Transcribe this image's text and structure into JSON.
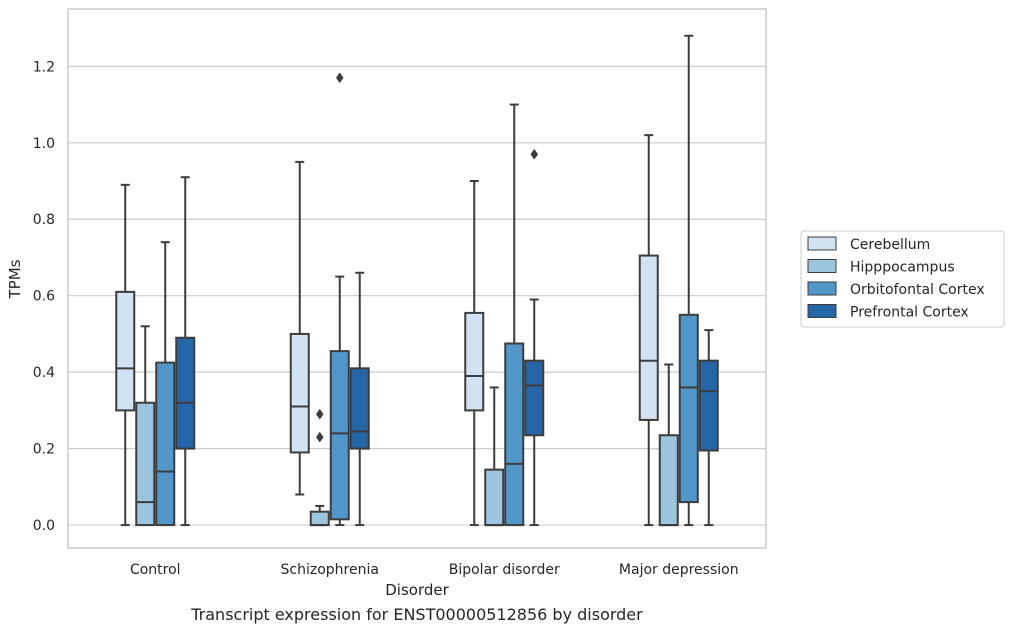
{
  "caption": "Transcript expression for ENST00000512856 by disorder",
  "chart_data": {
    "type": "box",
    "title": "",
    "xlabel": "Disorder",
    "ylabel": "TPMs",
    "ylim": [
      -0.06,
      1.35
    ],
    "yticks": [
      0.0,
      0.2,
      0.4,
      0.6,
      0.8,
      1.0,
      1.2
    ],
    "ytick_labels": [
      "0.0",
      "0.2",
      "0.4",
      "0.6",
      "0.8",
      "1.0",
      "1.2"
    ],
    "grid": "horizontal",
    "legend_position": "right",
    "categories": [
      "Control",
      "Schizophrenia",
      "Bipolar disorder",
      "Major depression"
    ],
    "series": [
      {
        "name": "Cerebellum",
        "color": "#d1e2f2",
        "boxes": [
          {
            "whislo": 0.0,
            "q1": 0.3,
            "med": 0.41,
            "q3": 0.61,
            "whishi": 0.89,
            "fliers": []
          },
          {
            "whislo": 0.08,
            "q1": 0.19,
            "med": 0.31,
            "q3": 0.5,
            "whishi": 0.95,
            "fliers": []
          },
          {
            "whislo": 0.0,
            "q1": 0.3,
            "med": 0.39,
            "q3": 0.555,
            "whishi": 0.9,
            "fliers": []
          },
          {
            "whislo": 0.0,
            "q1": 0.275,
            "med": 0.43,
            "q3": 0.705,
            "whishi": 1.02,
            "fliers": []
          }
        ]
      },
      {
        "name": "Hipppocampus",
        "color": "#9cc5de",
        "boxes": [
          {
            "whislo": 0.0,
            "q1": 0.0,
            "med": 0.06,
            "q3": 0.32,
            "whishi": 0.52,
            "fliers": []
          },
          {
            "whislo": 0.0,
            "q1": 0.0,
            "med": 0.0,
            "q3": 0.035,
            "whishi": 0.05,
            "fliers": [
              0.23,
              0.29
            ]
          },
          {
            "whislo": 0.0,
            "q1": 0.0,
            "med": 0.0,
            "q3": 0.145,
            "whishi": 0.36,
            "fliers": []
          },
          {
            "whislo": 0.0,
            "q1": 0.0,
            "med": 0.0,
            "q3": 0.235,
            "whishi": 0.42,
            "fliers": []
          }
        ]
      },
      {
        "name": "Orbitofontal Cortex",
        "color": "#5197c9",
        "boxes": [
          {
            "whislo": 0.0,
            "q1": 0.0,
            "med": 0.14,
            "q3": 0.425,
            "whishi": 0.74,
            "fliers": []
          },
          {
            "whislo": 0.0,
            "q1": 0.015,
            "med": 0.24,
            "q3": 0.455,
            "whishi": 0.65,
            "fliers": [
              1.17
            ]
          },
          {
            "whislo": 0.0,
            "q1": 0.0,
            "med": 0.16,
            "q3": 0.475,
            "whishi": 1.1,
            "fliers": []
          },
          {
            "whislo": 0.0,
            "q1": 0.06,
            "med": 0.36,
            "q3": 0.55,
            "whishi": 1.28,
            "fliers": []
          }
        ]
      },
      {
        "name": "Prefrontal Cortex",
        "color": "#2466a8",
        "boxes": [
          {
            "whislo": 0.0,
            "q1": 0.2,
            "med": 0.32,
            "q3": 0.49,
            "whishi": 0.91,
            "fliers": []
          },
          {
            "whislo": 0.0,
            "q1": 0.2,
            "med": 0.245,
            "q3": 0.41,
            "whishi": 0.66,
            "fliers": []
          },
          {
            "whislo": 0.0,
            "q1": 0.235,
            "med": 0.365,
            "q3": 0.43,
            "whishi": 0.59,
            "fliers": [
              0.97
            ]
          },
          {
            "whislo": 0.0,
            "q1": 0.195,
            "med": 0.35,
            "q3": 0.43,
            "whishi": 0.51,
            "fliers": []
          }
        ]
      }
    ]
  }
}
